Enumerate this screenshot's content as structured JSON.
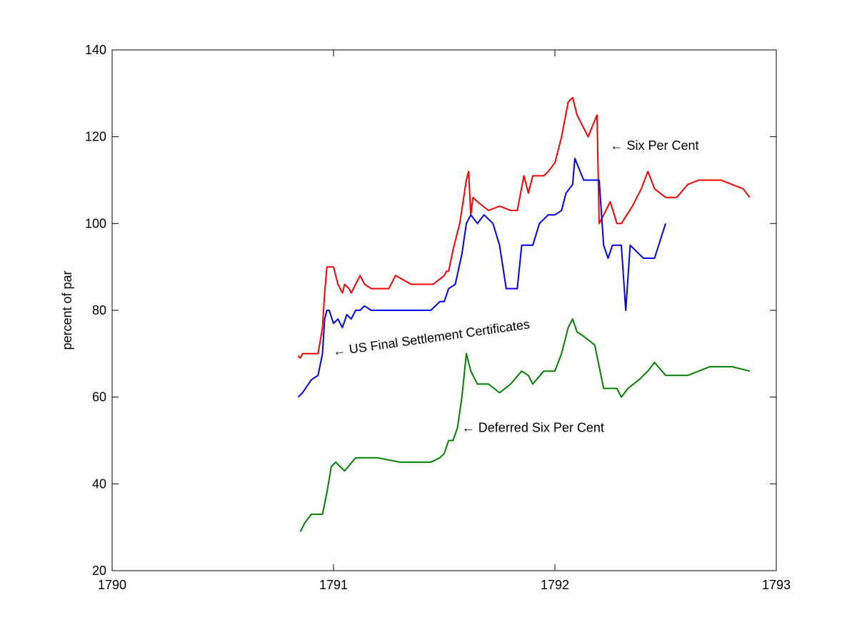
{
  "chart_data": {
    "type": "line",
    "title": "",
    "xlabel": "",
    "ylabel": "percent of par",
    "xlim": [
      1790,
      1793
    ],
    "ylim": [
      20,
      140
    ],
    "xticks": [
      1790,
      1791,
      1792,
      1793
    ],
    "yticks": [
      20,
      40,
      60,
      80,
      100,
      120,
      140
    ],
    "grid": false,
    "annotations": [
      {
        "text": "← Six Per Cent",
        "x": 1792.25,
        "y": 117,
        "angle": 0
      },
      {
        "text": "← US Final Settlement Certificates",
        "x": 1791.0,
        "y": 69.5,
        "angle": -8
      },
      {
        "text": "← Deferred Six Per Cent",
        "x": 1791.58,
        "y": 52,
        "angle": 0
      }
    ],
    "series": [
      {
        "name": "Six Per Cent",
        "color": "#ff0000",
        "x": [
          1790.84,
          1790.85,
          1790.86,
          1790.9,
          1790.93,
          1790.95,
          1790.96,
          1790.97,
          1791.0,
          1791.02,
          1791.04,
          1791.05,
          1791.07,
          1791.08,
          1791.1,
          1791.12,
          1791.14,
          1791.17,
          1791.2,
          1791.25,
          1791.28,
          1791.35,
          1791.45,
          1791.5,
          1791.51,
          1791.52,
          1791.54,
          1791.57,
          1791.6,
          1791.61,
          1791.62,
          1791.63,
          1791.65,
          1791.7,
          1791.75,
          1791.8,
          1791.83,
          1791.86,
          1791.88,
          1791.9,
          1791.95,
          1791.97,
          1792.0,
          1792.03,
          1792.06,
          1792.08,
          1792.1,
          1792.15,
          1792.19,
          1792.2,
          1792.25,
          1792.28,
          1792.3,
          1792.35,
          1792.39,
          1792.42,
          1792.45,
          1792.5,
          1792.55,
          1792.6,
          1792.65,
          1792.7,
          1792.75,
          1792.85,
          1792.88
        ],
        "y": [
          69.5,
          69,
          70,
          70,
          70,
          76,
          84,
          90,
          90,
          86,
          84,
          86,
          85,
          84,
          86,
          88,
          86,
          85,
          85,
          85,
          88,
          86,
          86,
          88,
          89,
          89,
          94,
          100,
          110,
          112,
          102,
          106,
          105,
          103,
          104,
          103,
          103,
          111,
          107,
          111,
          111,
          112,
          114,
          120,
          128,
          129,
          125,
          120,
          125,
          100,
          105,
          100,
          100,
          104,
          108,
          112,
          108,
          106,
          106,
          109,
          110,
          110,
          110,
          108,
          106
        ]
      },
      {
        "name": "US Final Settlement Certificates",
        "color": "#0000ff",
        "x": [
          1790.84,
          1790.86,
          1790.9,
          1790.93,
          1790.95,
          1790.96,
          1790.97,
          1790.98,
          1791.0,
          1791.02,
          1791.04,
          1791.06,
          1791.08,
          1791.1,
          1791.12,
          1791.14,
          1791.17,
          1791.25,
          1791.35,
          1791.44,
          1791.48,
          1791.5,
          1791.52,
          1791.55,
          1791.58,
          1791.6,
          1791.62,
          1791.65,
          1791.68,
          1791.72,
          1791.75,
          1791.78,
          1791.8,
          1791.83,
          1791.85,
          1791.9,
          1791.93,
          1791.97,
          1792.0,
          1792.03,
          1792.05,
          1792.08,
          1792.09,
          1792.13,
          1792.2,
          1792.22,
          1792.24,
          1792.26,
          1792.3,
          1792.32,
          1792.34,
          1792.4,
          1792.42,
          1792.45,
          1792.5
        ],
        "y": [
          60,
          61,
          64,
          65,
          70,
          78,
          80,
          80,
          77,
          78,
          76,
          79,
          78,
          80,
          80,
          81,
          80,
          80,
          80,
          80,
          82,
          82,
          85,
          86,
          93,
          100,
          102,
          100,
          102,
          100,
          95,
          85,
          85,
          85,
          95,
          95,
          100,
          102,
          102,
          103,
          107,
          109,
          115,
          110,
          110,
          95,
          92,
          95,
          95,
          80,
          95,
          92,
          92,
          92,
          100
        ]
      },
      {
        "name": "Deferred Six Per Cent",
        "color": "#008000",
        "x": [
          1790.85,
          1790.87,
          1790.9,
          1790.93,
          1790.95,
          1790.97,
          1790.99,
          1791.01,
          1791.05,
          1791.1,
          1791.2,
          1791.3,
          1791.44,
          1791.48,
          1791.5,
          1791.52,
          1791.54,
          1791.56,
          1791.58,
          1791.6,
          1791.62,
          1791.65,
          1791.7,
          1791.75,
          1791.8,
          1791.85,
          1791.88,
          1791.9,
          1791.95,
          1792.0,
          1792.03,
          1792.06,
          1792.08,
          1792.1,
          1792.13,
          1792.18,
          1792.22,
          1792.25,
          1792.28,
          1792.3,
          1792.33,
          1792.38,
          1792.42,
          1792.45,
          1792.5,
          1792.6,
          1792.7,
          1792.8,
          1792.88
        ],
        "y": [
          29,
          31,
          33,
          33,
          33,
          38,
          44,
          45,
          43,
          46,
          46,
          45,
          45,
          46,
          47,
          50,
          50,
          53,
          60,
          70,
          66,
          63,
          63,
          61,
          63,
          66,
          65,
          63,
          66,
          66,
          70,
          76,
          78,
          75,
          74,
          72,
          62,
          62,
          62,
          60,
          62,
          64,
          66,
          68,
          65,
          65,
          67,
          67,
          66
        ]
      }
    ]
  }
}
